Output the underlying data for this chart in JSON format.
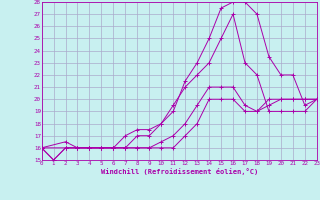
{
  "xlabel": "Windchill (Refroidissement éolien,°C)",
  "bg_color": "#c8f0f0",
  "line_color": "#aa00aa",
  "grid_color": "#aaaacc",
  "xmin": 0,
  "xmax": 23,
  "ymin": 15,
  "ymax": 28,
  "series": [
    {
      "x": [
        0,
        1,
        2,
        3,
        4,
        5,
        6,
        7,
        8,
        9,
        10,
        11,
        12,
        13,
        14,
        15,
        16,
        17,
        18,
        19,
        20,
        21,
        22,
        23
      ],
      "y": [
        16,
        15,
        16,
        16,
        16,
        16,
        16,
        16,
        16,
        16,
        16,
        16,
        17,
        18,
        20,
        20,
        20,
        19,
        19,
        20,
        20,
        20,
        20,
        20
      ]
    },
    {
      "x": [
        0,
        1,
        2,
        3,
        4,
        5,
        6,
        7,
        8,
        9,
        10,
        11,
        12,
        13,
        14,
        15,
        16,
        17,
        18,
        19,
        20,
        21,
        22,
        23
      ],
      "y": [
        16,
        15,
        16,
        16,
        16,
        16,
        16,
        16,
        16,
        16,
        16.5,
        17,
        18,
        19.5,
        21,
        21,
        21,
        19.5,
        19,
        19.5,
        20,
        20,
        20,
        20
      ]
    },
    {
      "x": [
        0,
        2,
        3,
        4,
        5,
        6,
        7,
        8,
        9,
        10,
        11,
        12,
        13,
        14,
        15,
        16,
        17,
        18,
        19,
        20,
        21,
        22,
        23
      ],
      "y": [
        16,
        16,
        16,
        16,
        16,
        16,
        17,
        17.5,
        17.5,
        18,
        19.5,
        21,
        22,
        23,
        25,
        27,
        23,
        22,
        19,
        19,
        19,
        19,
        20
      ]
    },
    {
      "x": [
        0,
        2,
        3,
        4,
        5,
        6,
        7,
        8,
        9,
        10,
        11,
        12,
        13,
        14,
        15,
        16,
        17,
        18,
        19,
        20,
        21,
        22,
        23
      ],
      "y": [
        16,
        16.5,
        16,
        16,
        16,
        16,
        16,
        17,
        17,
        18,
        19,
        21.5,
        23,
        25,
        27.5,
        28,
        28,
        27,
        23.5,
        22,
        22,
        19.5,
        20
      ]
    }
  ]
}
